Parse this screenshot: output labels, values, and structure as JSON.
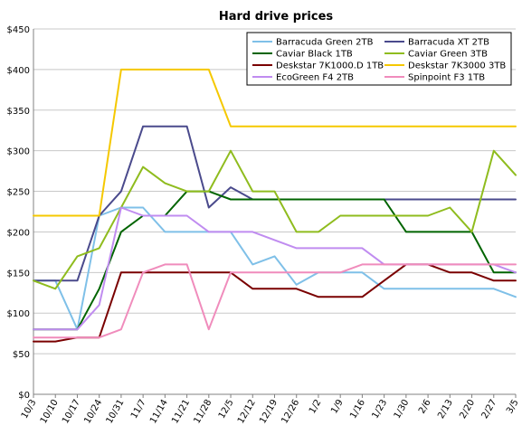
{
  "chart_data": {
    "type": "line",
    "title": "Hard drive prices",
    "xlabel": "",
    "ylabel": "",
    "ylim": [
      0,
      450
    ],
    "y_tick_step": 50,
    "y_tick_prefix": "$",
    "grid": true,
    "legend_position": "top-right",
    "categories": [
      "10/3",
      "10/10",
      "10/17",
      "10/24",
      "10/31",
      "11/7",
      "11/14",
      "11/21",
      "11/28",
      "12/5",
      "12/12",
      "12/19",
      "12/26",
      "1/2",
      "1/9",
      "1/16",
      "1/23",
      "1/30",
      "2/6",
      "2/13",
      "2/20",
      "2/27",
      "3/5"
    ],
    "series": [
      {
        "name": "Barracuda Green 2TB",
        "color": "#7fc0e8",
        "values": [
          140,
          140,
          80,
          220,
          230,
          230,
          200,
          200,
          200,
          200,
          160,
          170,
          135,
          150,
          150,
          150,
          130,
          130,
          130,
          130,
          130,
          130,
          120
        ]
      },
      {
        "name": "Barracuda XT 2TB",
        "color": "#4a4a8c",
        "values": [
          140,
          140,
          140,
          220,
          250,
          330,
          330,
          330,
          230,
          255,
          240,
          240,
          240,
          240,
          240,
          240,
          240,
          240,
          240,
          240,
          240,
          240,
          240
        ]
      },
      {
        "name": "Caviar Black 1TB",
        "color": "#006400",
        "values": [
          80,
          80,
          80,
          130,
          200,
          220,
          220,
          250,
          250,
          240,
          240,
          240,
          240,
          240,
          240,
          240,
          240,
          200,
          200,
          200,
          200,
          150,
          150
        ]
      },
      {
        "name": "Caviar Green 3TB",
        "color": "#8fbc1e",
        "values": [
          140,
          130,
          170,
          180,
          230,
          280,
          260,
          250,
          250,
          300,
          250,
          250,
          200,
          200,
          220,
          220,
          220,
          220,
          220,
          230,
          200,
          300,
          270
        ]
      },
      {
        "name": "Deskstar 7K1000.D 1TB",
        "color": "#7a0000",
        "values": [
          65,
          65,
          70,
          70,
          150,
          150,
          150,
          150,
          150,
          150,
          130,
          130,
          130,
          120,
          120,
          120,
          140,
          160,
          160,
          150,
          150,
          140,
          140
        ]
      },
      {
        "name": "Deskstar 7K3000 3TB",
        "color": "#f5c800",
        "values": [
          220,
          220,
          220,
          220,
          400,
          400,
          400,
          400,
          400,
          330,
          330,
          330,
          330,
          330,
          330,
          330,
          330,
          330,
          330,
          330,
          330,
          330,
          330
        ]
      },
      {
        "name": "EcoGreen F4 2TB",
        "color": "#c08cf0",
        "values": [
          80,
          80,
          80,
          110,
          230,
          220,
          220,
          220,
          200,
          200,
          200,
          190,
          180,
          180,
          180,
          180,
          160,
          160,
          160,
          160,
          160,
          160,
          150
        ]
      },
      {
        "name": "Spinpoint F3 1TB",
        "color": "#f08cbc",
        "values": [
          70,
          70,
          70,
          70,
          80,
          150,
          160,
          160,
          80,
          150,
          150,
          150,
          150,
          150,
          150,
          160,
          160,
          160,
          160,
          160,
          160,
          160,
          160
        ]
      }
    ]
  }
}
